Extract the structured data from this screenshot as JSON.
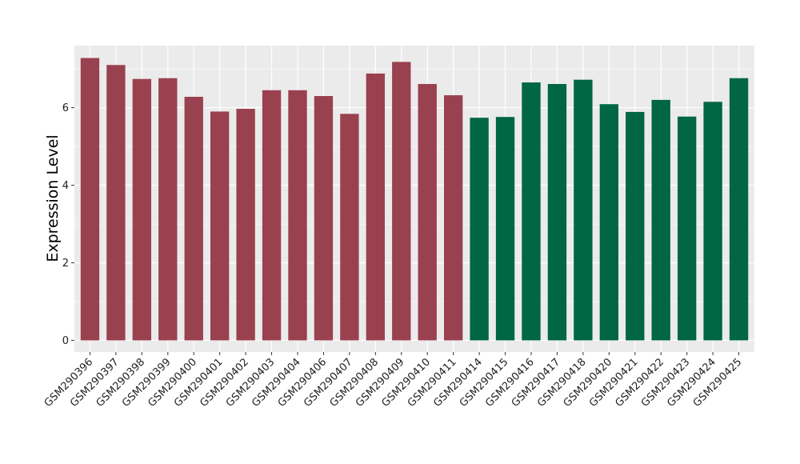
{
  "chart_data": {
    "type": "bar",
    "title": "",
    "xlabel": "",
    "ylabel": "Expression Level",
    "ylim": [
      -0.3,
      7.6
    ],
    "yticks": [
      0,
      2,
      4,
      6
    ],
    "grid": true,
    "legend": "none",
    "panel_background": "#ebebeb",
    "gridline_color": "#ffffff",
    "categories": [
      "GSM290396",
      "GSM290397",
      "GSM290398",
      "GSM290399",
      "GSM290400",
      "GSM290401",
      "GSM290402",
      "GSM290403",
      "GSM290404",
      "GSM290406",
      "GSM290407",
      "GSM290408",
      "GSM290409",
      "GSM290410",
      "GSM290411",
      "GSM290414",
      "GSM290415",
      "GSM290416",
      "GSM290417",
      "GSM290418",
      "GSM290420",
      "GSM290421",
      "GSM290422",
      "GSM290423",
      "GSM290424",
      "GSM290425"
    ],
    "values": [
      7.28,
      7.1,
      6.74,
      6.76,
      6.28,
      5.9,
      5.97,
      6.45,
      6.45,
      6.3,
      5.84,
      6.88,
      7.18,
      6.61,
      6.32,
      5.74,
      5.76,
      6.65,
      6.61,
      6.72,
      6.09,
      5.89,
      6.2,
      5.77,
      6.15,
      6.76
    ],
    "groups": [
      "g1",
      "g1",
      "g1",
      "g1",
      "g1",
      "g1",
      "g1",
      "g1",
      "g1",
      "g1",
      "g1",
      "g1",
      "g1",
      "g1",
      "g1",
      "g2",
      "g2",
      "g2",
      "g2",
      "g2",
      "g2",
      "g2",
      "g2",
      "g2",
      "g2",
      "g2"
    ],
    "group_colors": {
      "g1": "#9a4150",
      "g2": "#006644"
    }
  }
}
